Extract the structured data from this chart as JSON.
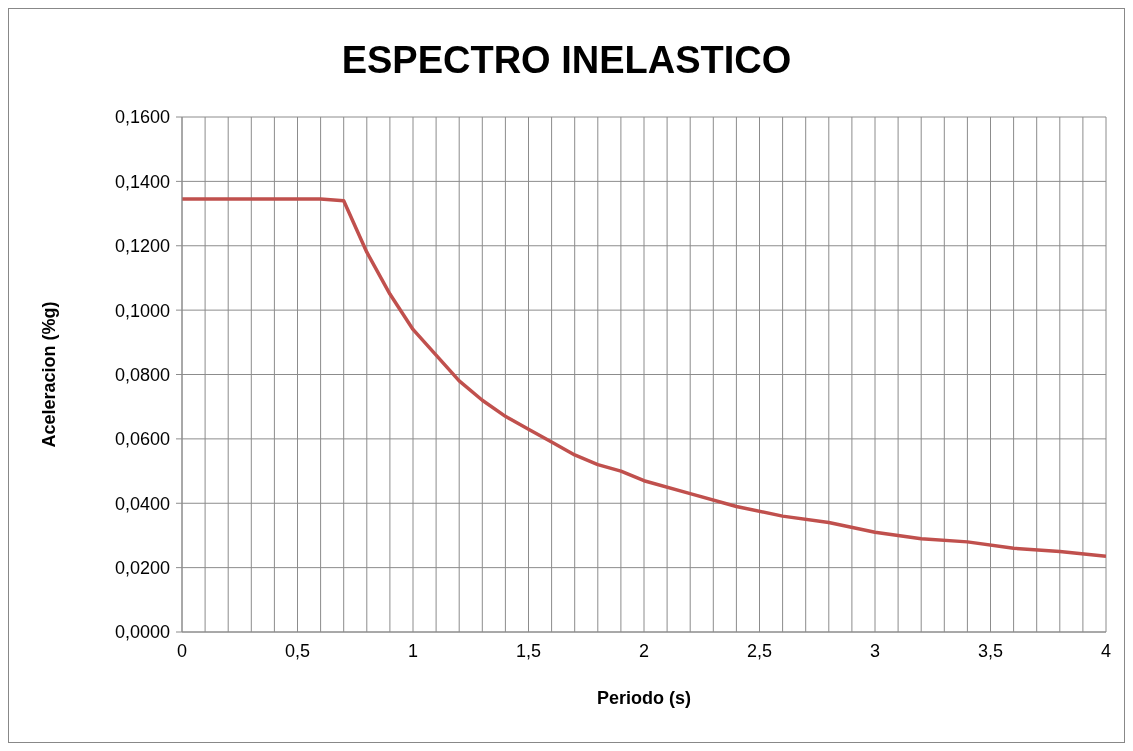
{
  "chart_data": {
    "type": "line",
    "title": "ESPECTRO INELASTICO",
    "xlabel": "Periodo (s)",
    "ylabel": "Aceleracion (%g)",
    "x": [
      0,
      0.1,
      0.2,
      0.3,
      0.4,
      0.5,
      0.6,
      0.7,
      0.8,
      0.9,
      1.0,
      1.1,
      1.2,
      1.3,
      1.4,
      1.5,
      1.6,
      1.7,
      1.8,
      1.9,
      2.0,
      2.2,
      2.4,
      2.6,
      2.8,
      3.0,
      3.2,
      3.4,
      3.6,
      3.8,
      4.0
    ],
    "series": [
      {
        "color": "#c0504d",
        "values": [
          0.1345,
          0.1345,
          0.1345,
          0.1345,
          0.1345,
          0.1345,
          0.1345,
          0.134,
          0.118,
          0.105,
          0.094,
          0.086,
          0.078,
          0.072,
          0.067,
          0.063,
          0.059,
          0.055,
          0.052,
          0.05,
          0.047,
          0.043,
          0.039,
          0.036,
          0.034,
          0.031,
          0.029,
          0.028,
          0.026,
          0.025,
          0.0235
        ]
      }
    ],
    "xlim": [
      0,
      4
    ],
    "xticks": [
      0,
      {
        "value": 0.1,
        "label": null
      },
      {
        "value": 0.2,
        "label": null
      },
      {
        "value": 0.3,
        "label": null
      },
      {
        "value": 0.4,
        "label": null
      },
      {
        "value": 0.5,
        "label": "0,5"
      },
      {
        "value": 0.6,
        "label": null
      },
      {
        "value": 0.7,
        "label": null
      },
      {
        "value": 0.8,
        "label": null
      },
      {
        "value": 0.9,
        "label": null
      },
      1,
      {
        "value": 1.1,
        "label": null
      },
      {
        "value": 1.2,
        "label": null
      },
      {
        "value": 1.3,
        "label": null
      },
      {
        "value": 1.4,
        "label": null
      },
      {
        "value": 1.5,
        "label": "1,5"
      },
      {
        "value": 1.6,
        "label": null
      },
      {
        "value": 1.7,
        "label": null
      },
      {
        "value": 1.8,
        "label": null
      },
      {
        "value": 1.9,
        "label": null
      },
      2,
      {
        "value": 2.1,
        "label": null
      },
      {
        "value": 2.2,
        "label": null
      },
      {
        "value": 2.3,
        "label": null
      },
      {
        "value": 2.4,
        "label": null
      },
      {
        "value": 2.5,
        "label": "2,5"
      },
      {
        "value": 2.6,
        "label": null
      },
      {
        "value": 2.7,
        "label": null
      },
      {
        "value": 2.8,
        "label": null
      },
      {
        "value": 2.9,
        "label": null
      },
      3,
      {
        "value": 3.1,
        "label": null
      },
      {
        "value": 3.2,
        "label": null
      },
      {
        "value": 3.3,
        "label": null
      },
      {
        "value": 3.4,
        "label": null
      },
      {
        "value": 3.5,
        "label": "3,5"
      },
      {
        "value": 3.6,
        "label": null
      },
      {
        "value": 3.7,
        "label": null
      },
      {
        "value": 3.8,
        "label": null
      },
      {
        "value": 3.9,
        "label": null
      },
      4
    ],
    "ylim": [
      0,
      0.16
    ],
    "yticks": [
      {
        "value": 0,
        "label": "0,0000"
      },
      {
        "value": 0.02,
        "label": "0,0200"
      },
      {
        "value": 0.04,
        "label": "0,0400"
      },
      {
        "value": 0.06,
        "label": "0,0600"
      },
      {
        "value": 0.08,
        "label": "0,0800"
      },
      {
        "value": 0.1,
        "label": "0,1000"
      },
      {
        "value": 0.12,
        "label": "0,1200"
      },
      {
        "value": 0.14,
        "label": "0,1400"
      },
      {
        "value": 0.16,
        "label": "0,1600"
      }
    ],
    "grid": true,
    "marker": "none",
    "line_style": "solid"
  }
}
